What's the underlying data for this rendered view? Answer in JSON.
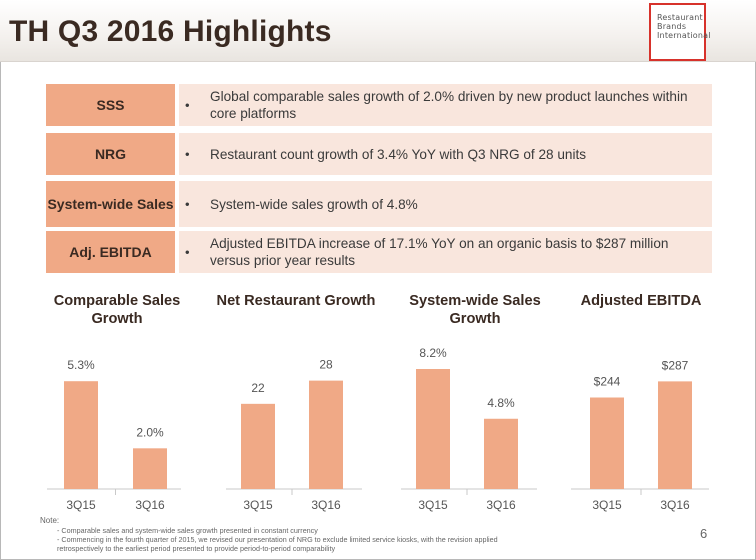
{
  "header": {
    "title": "TH Q3 2016 Highlights",
    "logo_lines": [
      "Restaurant",
      "Brands",
      "International"
    ]
  },
  "highlights": [
    {
      "label": "SSS",
      "bullet": "•",
      "text": "Global comparable sales growth of 2.0% driven by new product launches within core platforms"
    },
    {
      "label": "NRG",
      "bullet": "•",
      "text": "Restaurant count growth of 3.4% YoY with Q3 NRG of 28 units"
    },
    {
      "label": "System-wide Sales",
      "bullet": "•",
      "text": "System-wide sales growth of 4.8%"
    },
    {
      "label": "Adj. EBITDA",
      "bullet": "•",
      "text": "Adjusted EBITDA increase of 17.1% YoY on an organic basis to $287 million versus prior year results"
    }
  ],
  "chart_data": [
    {
      "type": "bar",
      "title": "Comparable Sales Growth",
      "categories": [
        "3Q15",
        "3Q16"
      ],
      "values": [
        5.3,
        2.0
      ],
      "labels": [
        "5.3%",
        "2.0%"
      ],
      "ylim": [
        0,
        5.9
      ],
      "grid": false
    },
    {
      "type": "bar",
      "title": "Net Restaurant Growth",
      "categories": [
        "3Q15",
        "3Q16"
      ],
      "values": [
        22,
        28
      ],
      "labels": [
        "22",
        "28"
      ],
      "ylim": [
        0,
        31
      ],
      "grid": false
    },
    {
      "type": "bar",
      "title": "System-wide Sales Growth",
      "categories": [
        "3Q15",
        "3Q16"
      ],
      "values": [
        8.2,
        4.8
      ],
      "labels": [
        "8.2%",
        "4.8%"
      ],
      "ylim": [
        0,
        8.2
      ],
      "grid": false
    },
    {
      "type": "bar",
      "title": "Adjusted EBITDA",
      "categories": [
        "3Q15",
        "3Q16"
      ],
      "values": [
        244,
        287
      ],
      "labels": [
        "$244",
        "$287"
      ],
      "ylim": [
        0,
        320
      ],
      "grid": false
    }
  ],
  "colors": {
    "bar": "#f0a986",
    "label_fill": "#f0a986",
    "text_fill": "#f9e6dd",
    "logo_border": "#d7322b"
  },
  "footer": {
    "note_label": "Note:",
    "notes": [
      "- Comparable sales and system-wide sales growth presented in constant currency",
      "- Commencing in the fourth quarter of 2015, we revised our presentation of NRG to exclude limited service kiosks, with the revision applied",
      "  retrospectively to the earliest period presented to provide period-to-period comparability"
    ],
    "page_number": "6"
  }
}
